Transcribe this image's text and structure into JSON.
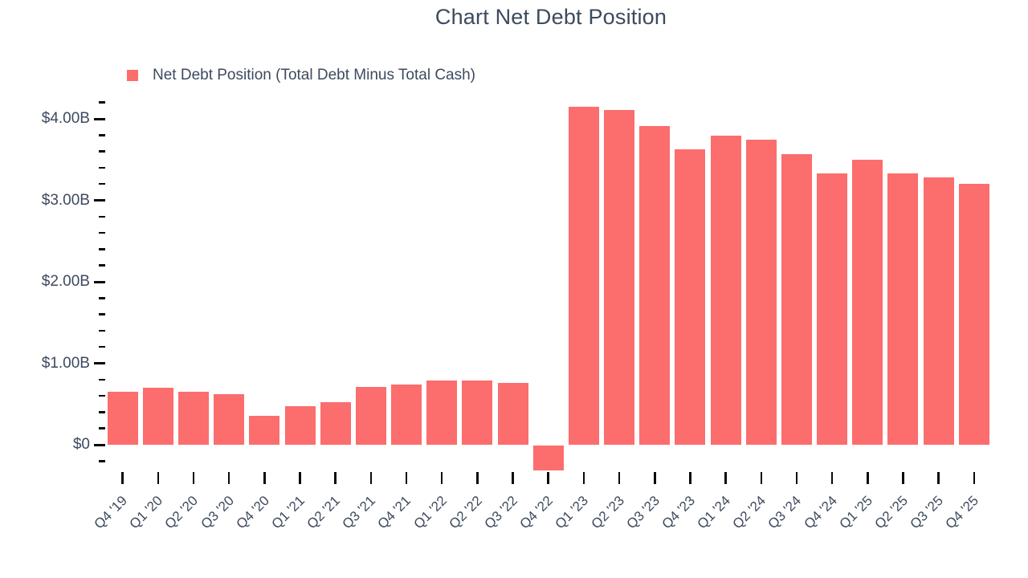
{
  "chart_data": {
    "type": "bar",
    "title": "Chart Net Debt Position",
    "legend_label": "Net Debt Position (Total Debt Minus Total Cash)",
    "legend_position": "top-left",
    "categories": [
      "Q4 '19",
      "Q1 '20",
      "Q2 '20",
      "Q3 '20",
      "Q4 '20",
      "Q1 '21",
      "Q2 '21",
      "Q3 '21",
      "Q4 '21",
      "Q1 '22",
      "Q2 '22",
      "Q3 '22",
      "Q4 '22",
      "Q1 '23",
      "Q2 '23",
      "Q3 '23",
      "Q4 '23",
      "Q1 '24",
      "Q2 '24",
      "Q3 '24",
      "Q4 '24",
      "Q1 '25",
      "Q2 '25",
      "Q3 '25",
      "Q4 '25"
    ],
    "values": [
      0.65,
      0.7,
      0.65,
      0.62,
      0.35,
      0.47,
      0.52,
      0.71,
      0.74,
      0.79,
      0.79,
      0.76,
      -0.31,
      4.15,
      4.11,
      3.91,
      3.63,
      3.79,
      3.74,
      3.57,
      3.33,
      3.5,
      3.33,
      3.28,
      3.2
    ],
    "value_unit": "billions USD",
    "xlabel": "",
    "ylabel": "",
    "ytick_values": [
      0,
      1,
      2,
      3,
      4
    ],
    "ytick_labels": [
      "$0",
      "$1.00B",
      "$2.00B",
      "$3.00B",
      "$4.00B"
    ],
    "minor_tick_step": 0.2,
    "minor_tick_range": [
      -0.2,
      4.2
    ],
    "ylim": [
      -0.45,
      4.3
    ],
    "grid": false,
    "bar_color": "#fc6d6d",
    "text_color": "#3d4a5e",
    "tick_color": "#0a0a0a"
  }
}
